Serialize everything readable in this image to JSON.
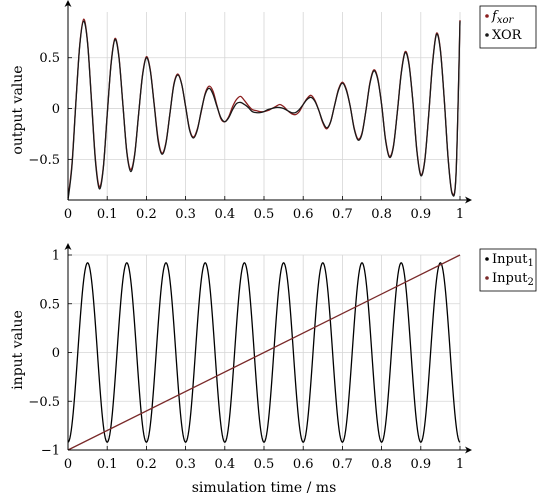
{
  "chart_data": [
    {
      "type": "line",
      "xlabel": "",
      "ylabel": "output value",
      "xlim": [
        0,
        1
      ],
      "ylim": [
        -0.9,
        0.95
      ],
      "xticks": [
        "0",
        "0.1",
        "0.2",
        "0.3",
        "0.4",
        "0.5",
        "0.6",
        "0.7",
        "0.8",
        "0.9",
        "1"
      ],
      "yticks": [
        "-0.5",
        "0",
        "0.5"
      ],
      "grid": true,
      "legend_position": "top-right",
      "series": [
        {
          "name": "f",
          "name_subscript": "xor",
          "color": "#8b1f1f",
          "x": [
            0,
            0.01,
            0.02,
            0.03,
            0.04,
            0.05,
            0.06,
            0.07,
            0.08,
            0.09,
            0.1,
            0.11,
            0.12,
            0.13,
            0.14,
            0.15,
            0.16,
            0.17,
            0.18,
            0.19,
            0.2,
            0.21,
            0.22,
            0.23,
            0.24,
            0.25,
            0.26,
            0.27,
            0.28,
            0.29,
            0.3,
            0.31,
            0.32,
            0.33,
            0.34,
            0.35,
            0.36,
            0.37,
            0.38,
            0.39,
            0.4,
            0.41,
            0.42,
            0.43,
            0.44,
            0.45,
            0.46,
            0.47,
            0.48,
            0.49,
            0.5,
            0.51,
            0.52,
            0.53,
            0.54,
            0.55,
            0.56,
            0.57,
            0.58,
            0.59,
            0.6,
            0.61,
            0.62,
            0.63,
            0.64,
            0.65,
            0.66,
            0.67,
            0.68,
            0.69,
            0.7,
            0.71,
            0.72,
            0.73,
            0.74,
            0.75,
            0.76,
            0.77,
            0.78,
            0.79,
            0.8,
            0.81,
            0.82,
            0.83,
            0.84,
            0.85,
            0.86,
            0.87,
            0.88,
            0.89,
            0.9,
            0.91,
            0.92,
            0.93,
            0.94,
            0.95,
            0.96,
            0.97,
            0.98,
            0.99,
            1
          ],
          "y": [
            -0.88,
            -0.55,
            0.06,
            0.63,
            0.88,
            0.65,
            0.08,
            -0.5,
            -0.77,
            -0.58,
            -0.06,
            0.45,
            0.69,
            0.51,
            0.04,
            -0.42,
            -0.6,
            -0.45,
            -0.06,
            0.33,
            0.51,
            0.38,
            0.04,
            -0.3,
            -0.44,
            -0.33,
            -0.05,
            0.24,
            0.34,
            0.24,
            0.02,
            -0.2,
            -0.28,
            -0.2,
            -0.03,
            0.15,
            0.22,
            0.17,
            0.03,
            -0.1,
            -0.13,
            -0.08,
            0.02,
            0.09,
            0.12,
            0.08,
            0.03,
            -0.01,
            -0.02,
            -0.03,
            -0.03,
            -0.02,
            0,
            0.02,
            0.04,
            0.02,
            -0.02,
            -0.05,
            -0.06,
            -0.03,
            0.04,
            0.1,
            0.13,
            0.08,
            -0.02,
            -0.14,
            -0.2,
            -0.13,
            0.03,
            0.19,
            0.26,
            0.19,
            0.02,
            -0.19,
            -0.3,
            -0.24,
            -0.02,
            0.25,
            0.38,
            0.3,
            0.04,
            -0.3,
            -0.47,
            -0.37,
            -0.04,
            0.35,
            0.56,
            0.44,
            0.06,
            -0.41,
            -0.65,
            -0.51,
            -0.07,
            0.45,
            0.74,
            0.58,
            0.08,
            -0.5,
            -0.83,
            -0.63,
            0.87
          ]
        },
        {
          "name": "XOR",
          "color": "#1a1a1a",
          "x": [
            0,
            0.01,
            0.02,
            0.03,
            0.04,
            0.05,
            0.06,
            0.07,
            0.08,
            0.09,
            0.1,
            0.11,
            0.12,
            0.13,
            0.14,
            0.15,
            0.16,
            0.17,
            0.18,
            0.19,
            0.2,
            0.21,
            0.22,
            0.23,
            0.24,
            0.25,
            0.26,
            0.27,
            0.28,
            0.29,
            0.3,
            0.31,
            0.32,
            0.33,
            0.34,
            0.35,
            0.36,
            0.37,
            0.38,
            0.39,
            0.4,
            0.41,
            0.42,
            0.43,
            0.44,
            0.45,
            0.46,
            0.47,
            0.48,
            0.49,
            0.5,
            0.51,
            0.52,
            0.53,
            0.54,
            0.55,
            0.56,
            0.57,
            0.58,
            0.59,
            0.6,
            0.61,
            0.62,
            0.63,
            0.64,
            0.65,
            0.66,
            0.67,
            0.68,
            0.69,
            0.7,
            0.71,
            0.72,
            0.73,
            0.74,
            0.75,
            0.76,
            0.77,
            0.78,
            0.79,
            0.8,
            0.81,
            0.82,
            0.83,
            0.84,
            0.85,
            0.86,
            0.87,
            0.88,
            0.89,
            0.9,
            0.91,
            0.92,
            0.93,
            0.94,
            0.95,
            0.96,
            0.97,
            0.98,
            0.99,
            1
          ],
          "y": [
            -0.9,
            -0.57,
            0.05,
            0.62,
            0.86,
            0.64,
            0.07,
            -0.52,
            -0.79,
            -0.59,
            -0.06,
            0.44,
            0.68,
            0.5,
            0.04,
            -0.43,
            -0.62,
            -0.46,
            -0.06,
            0.32,
            0.5,
            0.37,
            0.03,
            -0.32,
            -0.45,
            -0.34,
            -0.05,
            0.23,
            0.33,
            0.24,
            0.02,
            -0.21,
            -0.29,
            -0.21,
            -0.02,
            0.14,
            0.2,
            0.14,
            0.02,
            -0.09,
            -0.13,
            -0.09,
            -0.01,
            0.05,
            0.06,
            0.04,
            0.01,
            -0.03,
            -0.04,
            -0.04,
            -0.03,
            -0.01,
            0,
            0.01,
            0.01,
            0,
            -0.02,
            -0.04,
            -0.04,
            -0.01,
            0.04,
            0.09,
            0.11,
            0.07,
            -0.02,
            -0.13,
            -0.19,
            -0.13,
            0.03,
            0.18,
            0.25,
            0.18,
            0.02,
            -0.2,
            -0.31,
            -0.25,
            -0.02,
            0.24,
            0.37,
            0.29,
            0.04,
            -0.31,
            -0.48,
            -0.38,
            -0.04,
            0.34,
            0.55,
            0.43,
            0.06,
            -0.42,
            -0.66,
            -0.52,
            -0.07,
            0.44,
            0.73,
            0.57,
            0.08,
            -0.51,
            -0.84,
            -0.64,
            0.86
          ]
        }
      ]
    },
    {
      "type": "line",
      "xlabel": "simulation time / ms",
      "ylabel": "input value",
      "xlim": [
        0,
        1
      ],
      "ylim": [
        -1,
        1
      ],
      "xticks": [
        "0",
        "0.1",
        "0.2",
        "0.3",
        "0.4",
        "0.5",
        "0.6",
        "0.7",
        "0.8",
        "0.9",
        "1"
      ],
      "yticks": [
        "-1",
        "-0.5",
        "0",
        "0.5",
        "1"
      ],
      "grid": true,
      "legend_position": "top-right",
      "series": [
        {
          "name": "Input",
          "name_subscript": "1",
          "color": "#000000",
          "function": "sine",
          "amplitude": 0.92,
          "period": 0.1,
          "phase_start": "trough"
        },
        {
          "name": "Input",
          "name_subscript": "2",
          "color": "#7a2a2a",
          "x": [
            0,
            1
          ],
          "y": [
            -1,
            1
          ]
        }
      ]
    }
  ]
}
